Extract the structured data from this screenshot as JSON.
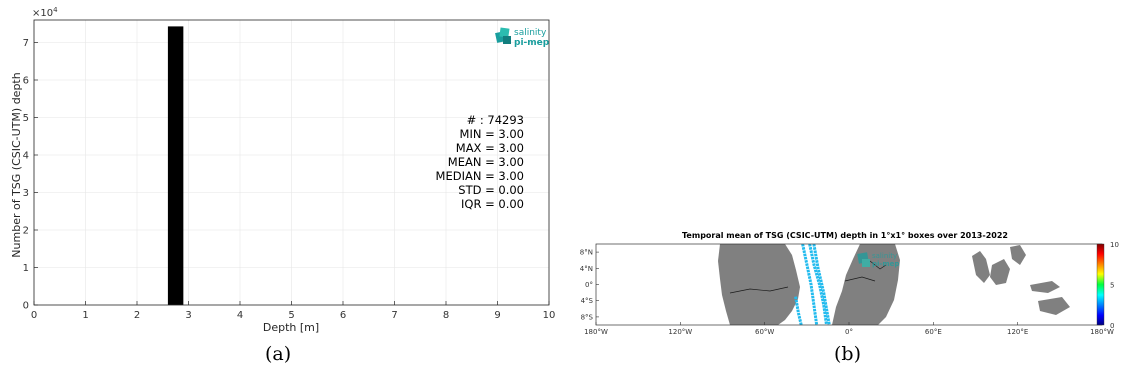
{
  "logo": {
    "line1": "salinity",
    "line2": "pi-mep",
    "color": "#1a9e9e"
  },
  "colors": {
    "bar": "#000000",
    "land": "#808080",
    "track": "#22bbee",
    "grid": "#e6e6e6"
  },
  "captions": {
    "a": "(a)",
    "b": "(b)"
  },
  "chart_data": [
    {
      "type": "bar",
      "id": "a",
      "ylabel": "Number of TSG (CSIC-UTM) depth",
      "xlabel": "Depth [m]",
      "y_multiplier": "×10",
      "y_multiplier_exp": "4",
      "xlim": [
        0,
        10
      ],
      "ylim": [
        0,
        7.6
      ],
      "grid": true,
      "xticks": [
        "0",
        "1",
        "2",
        "3",
        "4",
        "5",
        "6",
        "7",
        "8",
        "9",
        "10"
      ],
      "yticks": [
        "0",
        "1",
        "2",
        "3",
        "4",
        "5",
        "6",
        "7"
      ],
      "bars": [
        {
          "x0": 2.6,
          "x1": 2.9,
          "value": 7.4293
        }
      ],
      "stats": [
        "# : 74293",
        "MIN = 3.00",
        "MAX =  3.00",
        "MEAN = 3.00",
        "MEDIAN = 3.00",
        "STD = 0.00",
        "IQR = 0.00"
      ]
    },
    {
      "type": "heatmap",
      "id": "b",
      "title": "Temporal mean of TSG (CSIC-UTM) depth in 1°x1° boxes over 2013-2022",
      "xlim": [
        -180,
        180
      ],
      "ylim": [
        -10,
        10
      ],
      "xticks": [
        {
          "v": -180,
          "label": "180°W"
        },
        {
          "v": -120,
          "label": "120°W"
        },
        {
          "v": -60,
          "label": "60°W"
        },
        {
          "v": 0,
          "label": "0°"
        },
        {
          "v": 60,
          "label": "60°E"
        },
        {
          "v": 120,
          "label": "120°E"
        },
        {
          "v": 180,
          "label": "180°W"
        }
      ],
      "yticks": [
        {
          "v": 8,
          "label": "8°N"
        },
        {
          "v": 4,
          "label": "4°N"
        },
        {
          "v": 0,
          "label": "0°"
        },
        {
          "v": -4,
          "label": "4°S"
        },
        {
          "v": -8,
          "label": "8°S"
        }
      ],
      "colorbar": {
        "min": 0,
        "max": 10,
        "ticks": [
          "10",
          "5",
          "0"
        ]
      },
      "tracks": [
        {
          "points": [
            [
              -33,
              10
            ],
            [
              -30,
              5
            ],
            [
              -27,
              0
            ],
            [
              -25,
              -5
            ],
            [
              -23,
              -10
            ]
          ],
          "value": 3
        },
        {
          "points": [
            [
              -28,
              10
            ],
            [
              -25,
              5
            ],
            [
              -21,
              0
            ],
            [
              -18,
              -5
            ],
            [
              -16,
              -10
            ]
          ],
          "value": 3
        },
        {
          "points": [
            [
              -25,
              10
            ],
            [
              -22,
              4
            ],
            [
              -18,
              -2
            ],
            [
              -14,
              -10
            ]
          ],
          "value": 3
        },
        {
          "points": [
            [
              -38,
              -3
            ],
            [
              -36,
              -7
            ],
            [
              -34,
              -10
            ]
          ],
          "value": 3
        }
      ]
    }
  ]
}
